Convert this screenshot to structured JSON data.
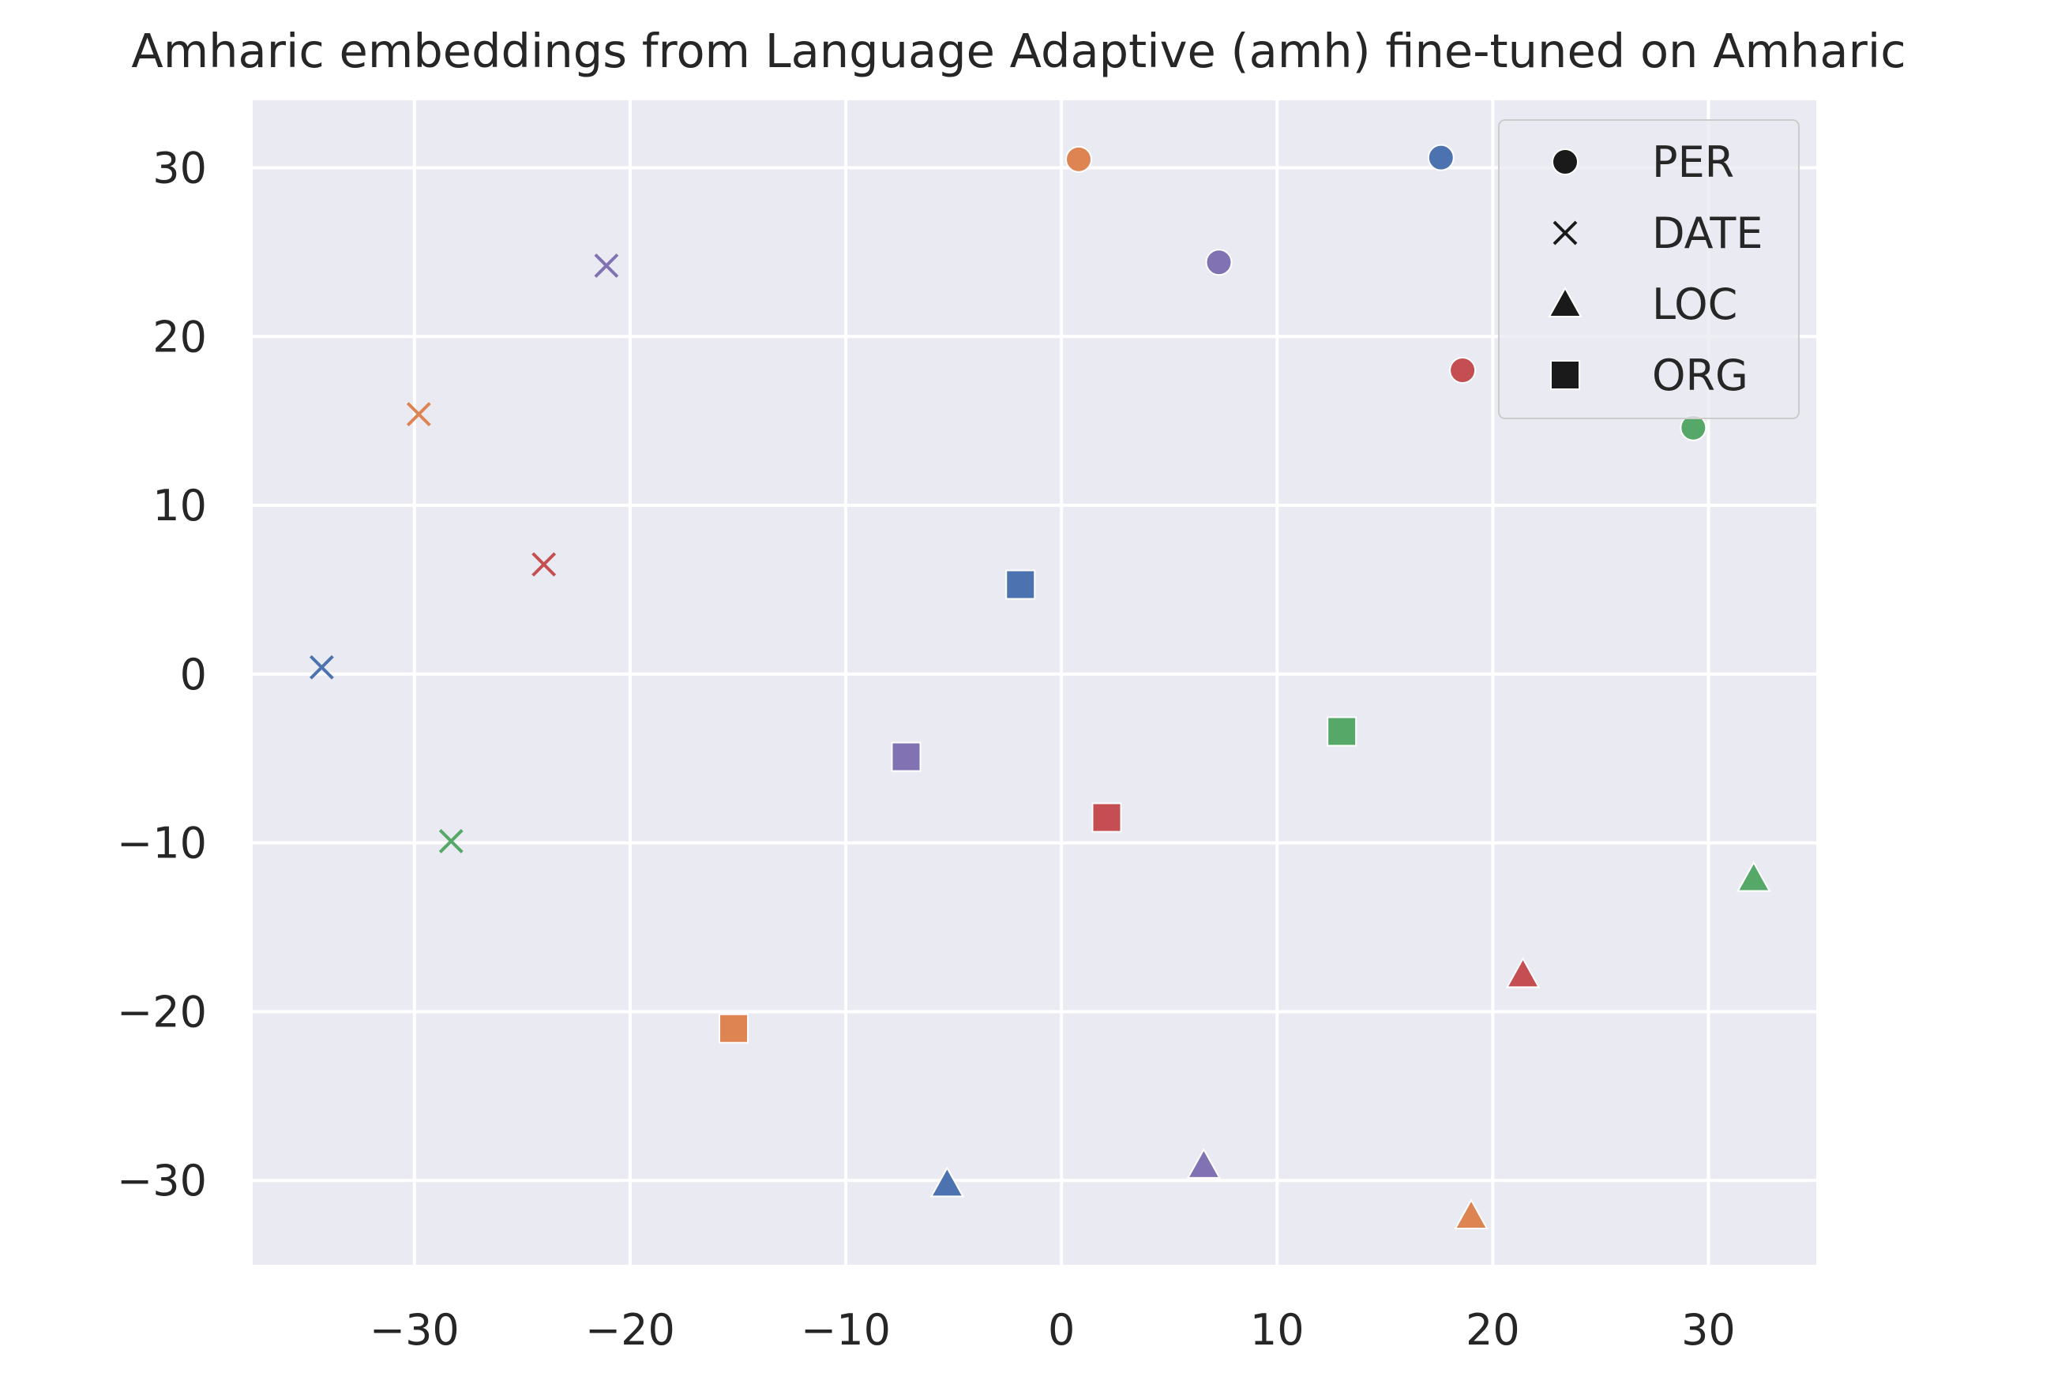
{
  "chart_data": {
    "type": "scatter",
    "title": "Amharic embeddings from Language Adaptive (amh) fine-tuned on Amharic",
    "xlabel": "",
    "ylabel": "",
    "xlim": [
      -37.5,
      35
    ],
    "ylim": [
      -35,
      34
    ],
    "grid": true,
    "xticks": [
      -30,
      -20,
      -10,
      0,
      10,
      20,
      30
    ],
    "yticks": [
      30,
      20,
      10,
      0,
      -10,
      -20,
      -30
    ],
    "xtick_labels": [
      "−30",
      "−20",
      "−10",
      "0",
      "10",
      "20",
      "30"
    ],
    "ytick_labels": [
      "30",
      "20",
      "10",
      "0",
      "−10",
      "−20",
      "−30"
    ],
    "legend": {
      "placement": "top-right",
      "entries": [
        {
          "label": "PER",
          "marker": "circle"
        },
        {
          "label": "DATE",
          "marker": "x"
        },
        {
          "label": "LOC",
          "marker": "triangle"
        },
        {
          "label": "ORG",
          "marker": "square"
        }
      ]
    },
    "colors": {
      "blue": "#4C72B0",
      "orange": "#DD8452",
      "green": "#55A868",
      "red": "#C44E52",
      "purple": "#8172B3"
    },
    "points": [
      {
        "x": 17.6,
        "y": 30.6,
        "marker": "circle",
        "color": "blue"
      },
      {
        "x": 0.8,
        "y": 30.5,
        "marker": "circle",
        "color": "orange"
      },
      {
        "x": 7.3,
        "y": 24.4,
        "marker": "circle",
        "color": "purple"
      },
      {
        "x": 18.6,
        "y": 18.0,
        "marker": "circle",
        "color": "red"
      },
      {
        "x": 29.3,
        "y": 14.6,
        "marker": "circle",
        "color": "green"
      },
      {
        "x": -21.1,
        "y": 24.2,
        "marker": "x",
        "color": "purple"
      },
      {
        "x": -29.8,
        "y": 15.4,
        "marker": "x",
        "color": "orange"
      },
      {
        "x": -24.0,
        "y": 6.5,
        "marker": "x",
        "color": "red"
      },
      {
        "x": -34.3,
        "y": 0.4,
        "marker": "x",
        "color": "blue"
      },
      {
        "x": -28.3,
        "y": -9.9,
        "marker": "x",
        "color": "green"
      },
      {
        "x": -1.9,
        "y": 5.3,
        "marker": "square",
        "color": "blue"
      },
      {
        "x": -7.2,
        "y": -4.9,
        "marker": "square",
        "color": "purple"
      },
      {
        "x": 13.0,
        "y": -3.4,
        "marker": "square",
        "color": "green"
      },
      {
        "x": 2.1,
        "y": -8.5,
        "marker": "square",
        "color": "red"
      },
      {
        "x": -15.2,
        "y": -21.0,
        "marker": "square",
        "color": "orange"
      },
      {
        "x": 32.1,
        "y": -12.1,
        "marker": "triangle",
        "color": "green"
      },
      {
        "x": 21.4,
        "y": -17.8,
        "marker": "triangle",
        "color": "red"
      },
      {
        "x": -5.3,
        "y": -30.2,
        "marker": "triangle",
        "color": "blue"
      },
      {
        "x": 6.6,
        "y": -29.1,
        "marker": "triangle",
        "color": "purple"
      },
      {
        "x": 19.0,
        "y": -32.1,
        "marker": "triangle",
        "color": "orange"
      }
    ]
  }
}
